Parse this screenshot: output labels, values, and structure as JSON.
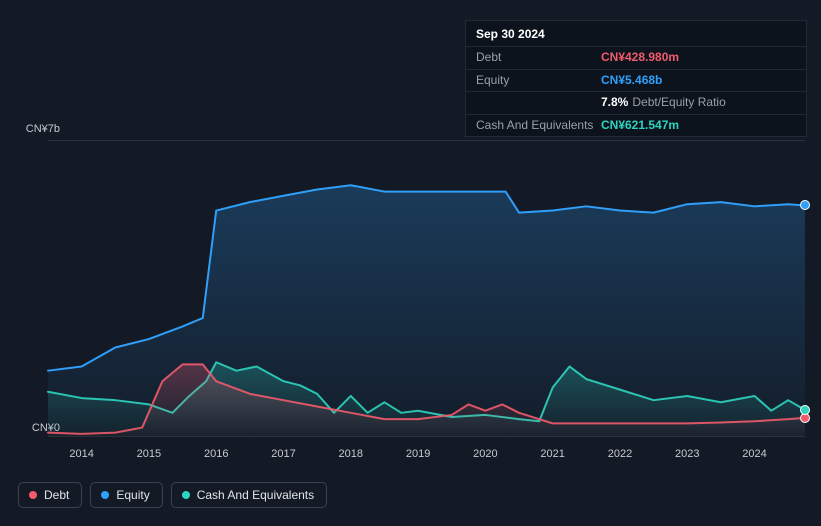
{
  "tooltip": {
    "date": "Sep 30 2024",
    "rows": [
      {
        "label": "Debt",
        "value": "CN¥428.980m",
        "color": "#f15b6c"
      },
      {
        "label": "Equity",
        "value": "CN¥5.468b",
        "color": "#2f9ffa"
      },
      {
        "label": "",
        "value": "7.8%",
        "suffix": "Debt/Equity Ratio",
        "color": "#ffffff"
      },
      {
        "label": "Cash And Equivalents",
        "value": "CN¥621.547m",
        "color": "#2dd4bf"
      }
    ]
  },
  "chart": {
    "type": "area",
    "background_color": "#131a25",
    "grid_color": "#2a3240",
    "y": {
      "min": 0,
      "max": 7,
      "top_label": "CN¥7b",
      "bottom_label": "CN¥0",
      "label_fontsize": 11,
      "label_color": "#c6cad0"
    },
    "x": {
      "ticks": [
        "2014",
        "2015",
        "2016",
        "2017",
        "2018",
        "2019",
        "2020",
        "2021",
        "2022",
        "2023",
        "2024"
      ],
      "min": 2013.5,
      "max": 2024.75,
      "label_fontsize": 11,
      "label_color": "#c6cad0"
    },
    "series": [
      {
        "name": "Equity",
        "color": "#2f9ffa",
        "fill_opacity": 0.25,
        "line_width": 2,
        "line_opacity": 1,
        "x": [
          2013.5,
          2014,
          2014.5,
          2015,
          2015.5,
          2015.8,
          2016,
          2016.5,
          2017,
          2017.5,
          2018,
          2018.5,
          2019,
          2019.5,
          2020,
          2020.3,
          2020.5,
          2021,
          2021.5,
          2022,
          2022.5,
          2023,
          2023.5,
          2024,
          2024.5,
          2024.75
        ],
        "y": [
          1.55,
          1.65,
          2.1,
          2.3,
          2.6,
          2.8,
          5.35,
          5.55,
          5.7,
          5.85,
          5.95,
          5.8,
          5.8,
          5.8,
          5.8,
          5.8,
          5.3,
          5.35,
          5.45,
          5.35,
          5.3,
          5.5,
          5.55,
          5.45,
          5.5,
          5.47
        ]
      },
      {
        "name": "Cash And Equivalents",
        "color": "#2dd4bf",
        "fill_opacity": 0.25,
        "line_width": 2,
        "line_opacity": 0.9,
        "x": [
          2013.5,
          2014,
          2014.5,
          2015,
          2015.35,
          2015.6,
          2015.85,
          2016,
          2016.3,
          2016.6,
          2017,
          2017.25,
          2017.5,
          2017.75,
          2018,
          2018.25,
          2018.5,
          2018.75,
          2019,
          2019.5,
          2020,
          2020.5,
          2020.8,
          2021,
          2021.25,
          2021.5,
          2022,
          2022.5,
          2023,
          2023.5,
          2024,
          2024.25,
          2024.5,
          2024.75
        ],
        "y": [
          1.05,
          0.9,
          0.85,
          0.75,
          0.55,
          0.95,
          1.3,
          1.75,
          1.55,
          1.65,
          1.3,
          1.2,
          1.0,
          0.55,
          0.95,
          0.55,
          0.8,
          0.55,
          0.6,
          0.45,
          0.5,
          0.4,
          0.35,
          1.15,
          1.65,
          1.35,
          1.1,
          0.85,
          0.95,
          0.8,
          0.95,
          0.6,
          0.85,
          0.62
        ]
      },
      {
        "name": "Debt",
        "color": "#f15b6c",
        "fill_opacity": 0.28,
        "line_width": 2,
        "line_opacity": 0.9,
        "x": [
          2013.5,
          2014,
          2014.5,
          2014.9,
          2015.2,
          2015.5,
          2015.8,
          2016,
          2016.5,
          2017,
          2017.5,
          2018,
          2018.5,
          2019,
          2019.5,
          2019.75,
          2020,
          2020.25,
          2020.5,
          2021,
          2021.5,
          2022,
          2022.5,
          2023,
          2023.5,
          2024,
          2024.5,
          2024.75
        ],
        "y": [
          0.08,
          0.05,
          0.08,
          0.2,
          1.3,
          1.7,
          1.7,
          1.3,
          1.0,
          0.85,
          0.7,
          0.55,
          0.4,
          0.4,
          0.5,
          0.75,
          0.6,
          0.75,
          0.55,
          0.3,
          0.3,
          0.3,
          0.3,
          0.3,
          0.32,
          0.35,
          0.4,
          0.43
        ]
      }
    ],
    "end_markers": [
      {
        "color": "#2f9ffa",
        "x": 2024.75,
        "y": 5.47
      },
      {
        "color": "#f15b6c",
        "x": 2024.75,
        "y": 0.43
      },
      {
        "color": "#2dd4bf",
        "x": 2024.75,
        "y": 0.62
      }
    ]
  },
  "legend": [
    {
      "label": "Debt",
      "color": "#f15b6c"
    },
    {
      "label": "Equity",
      "color": "#2f9ffa"
    },
    {
      "label": "Cash And Equivalents",
      "color": "#2dd4bf"
    }
  ]
}
